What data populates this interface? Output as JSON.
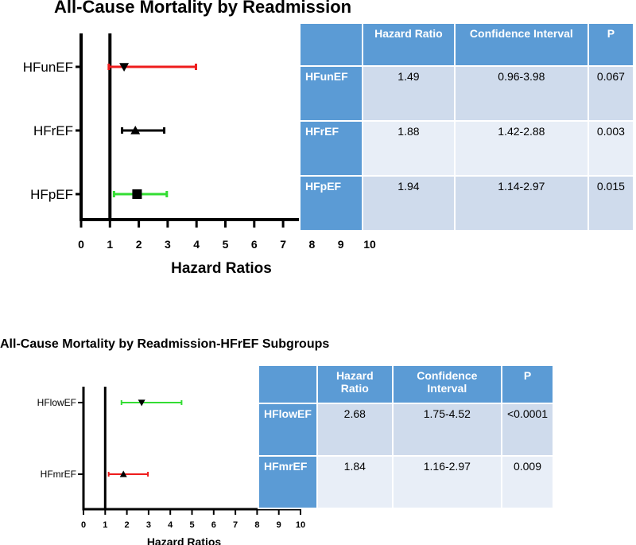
{
  "chart_data": [
    {
      "type": "forest",
      "title": "All-Cause Mortality by Readmission",
      "xlabel": "Hazard Ratios",
      "xlim": [
        0,
        10
      ],
      "xticks": [
        "0",
        "1",
        "2",
        "3",
        "4",
        "5",
        "6",
        "7",
        "8",
        "9",
        "10"
      ],
      "reference_line": 1,
      "rows": [
        {
          "label": "HFunEF",
          "hr": 1.49,
          "lo": 0.96,
          "hi": 3.98,
          "marker": "triangle-down",
          "color": "#ee1c1c"
        },
        {
          "label": "HFrEF",
          "hr": 1.88,
          "lo": 1.42,
          "hi": 2.88,
          "marker": "triangle-up",
          "color": "#000000"
        },
        {
          "label": "HFpEF",
          "hr": 1.94,
          "lo": 1.14,
          "hi": 2.97,
          "marker": "square",
          "color": "#33dd33"
        }
      ]
    },
    {
      "type": "forest",
      "title": "All-Cause Mortality by Readmission-HFrEF Subgroups",
      "xlabel": "Hazard Ratios",
      "xlim": [
        0,
        10
      ],
      "xticks": [
        "0",
        "1",
        "2",
        "3",
        "4",
        "5",
        "6",
        "7",
        "8",
        "9",
        "10"
      ],
      "reference_line": 1,
      "rows": [
        {
          "label": "HFlowEF",
          "hr": 2.68,
          "lo": 1.75,
          "hi": 4.52,
          "marker": "triangle-down",
          "color": "#33dd33"
        },
        {
          "label": "HFmrEF",
          "hr": 1.84,
          "lo": 1.16,
          "hi": 2.97,
          "marker": "triangle-up",
          "color": "#ee1c1c"
        }
      ]
    }
  ],
  "table1": {
    "headers": [
      "",
      "Hazard Ratio",
      "Confidence Interval",
      "P"
    ],
    "rows": [
      {
        "group": "HFunEF",
        "hr": "1.49",
        "ci": "0.96-3.98",
        "p": "0.067"
      },
      {
        "group": "HFrEF",
        "hr": "1.88",
        "ci": "1.42-2.88",
        "p": "0.003"
      },
      {
        "group": "HFpEF",
        "hr": "1.94",
        "ci": "1.14-2.97",
        "p": "0.015"
      }
    ]
  },
  "table2": {
    "headers": [
      "",
      "Hazard Ratio",
      "Confidence Interval",
      "P"
    ],
    "rows": [
      {
        "group": "HFlowEF",
        "hr": "2.68",
        "ci": "1.75-4.52",
        "p": "<0.0001"
      },
      {
        "group": "HFmrEF",
        "hr": "1.84",
        "ci": "1.16-2.97",
        "p": "0.009"
      }
    ]
  }
}
